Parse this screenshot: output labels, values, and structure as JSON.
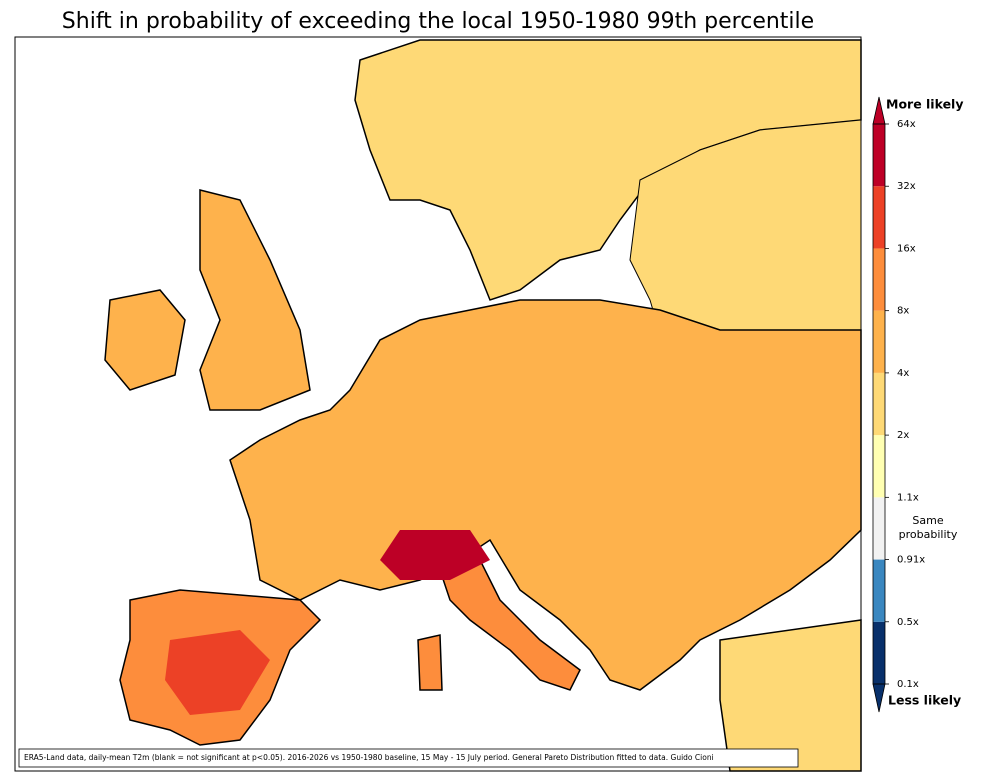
{
  "title": "Shift in probability of exceeding the local 1950-1980 99th percentile",
  "footnote": "ERA5-Land data, daily-mean T2m (blank = not significant at p<0.05). 2016-2026 vs 1950-1980 baseline, 15 May - 15 July period. General Pareto Distribution fitted to data. Guido Cioni",
  "colorbar": {
    "top_label": "More likely",
    "middle_label": "Same probability",
    "bottom_label": "Less likely",
    "ticks": [
      {
        "value": 0.1,
        "label": "0.1x"
      },
      {
        "value": 0.5,
        "label": "0.5x"
      },
      {
        "value": 0.91,
        "label": "0.91x"
      },
      {
        "value": 1.1,
        "label": "1.1x"
      },
      {
        "value": 2,
        "label": "2x"
      },
      {
        "value": 4,
        "label": "4x"
      },
      {
        "value": 8,
        "label": "8x"
      },
      {
        "value": 16,
        "label": "16x"
      },
      {
        "value": 32,
        "label": "32x"
      },
      {
        "value": 64,
        "label": "64x"
      }
    ],
    "colors": [
      "#08306b",
      "#3a87c0",
      "#f2f2f2",
      "#ffffb2",
      "#fed976",
      "#feb24c",
      "#fd8d3c",
      "#ec4126",
      "#bd0026"
    ],
    "under_color": "#08306b",
    "over_color": "#bd0026"
  }
}
